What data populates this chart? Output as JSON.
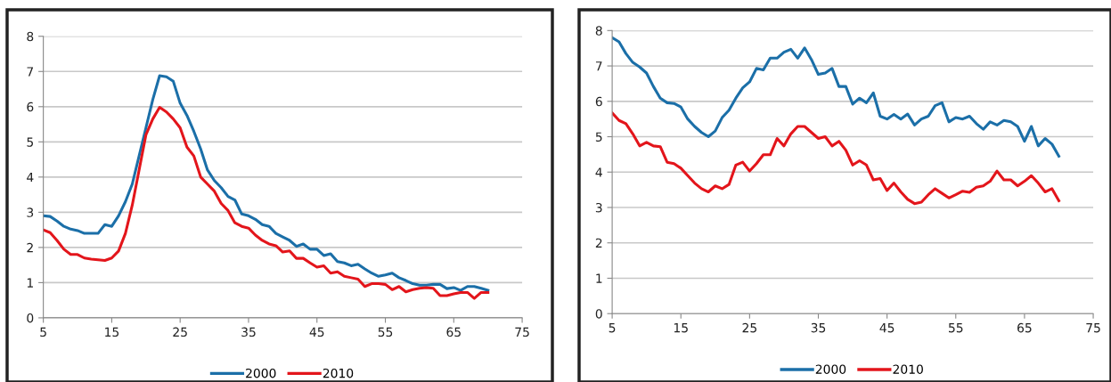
{
  "chart_data": [
    {
      "type": "line",
      "x": [
        5,
        6,
        7,
        8,
        9,
        10,
        11,
        12,
        13,
        14,
        15,
        16,
        17,
        18,
        19,
        20,
        21,
        22,
        23,
        24,
        25,
        26,
        27,
        28,
        29,
        30,
        31,
        32,
        33,
        34,
        35,
        36,
        37,
        38,
        39,
        40,
        41,
        42,
        43,
        44,
        45,
        46,
        47,
        48,
        49,
        50,
        51,
        52,
        53,
        54,
        55,
        56,
        57,
        58,
        59,
        60,
        61,
        62,
        63,
        64,
        65,
        66,
        67,
        68,
        69,
        70
      ],
      "series": [
        {
          "name": "2000",
          "color": "#1b6fa8",
          "values": [
            2.9,
            2.88,
            2.75,
            2.6,
            2.52,
            2.48,
            2.4,
            2.4,
            2.4,
            2.65,
            2.6,
            2.9,
            3.3,
            3.8,
            4.6,
            5.4,
            6.2,
            6.88,
            6.85,
            6.72,
            6.1,
            5.75,
            5.3,
            4.8,
            4.2,
            3.9,
            3.7,
            3.45,
            3.35,
            2.95,
            2.9,
            2.8,
            2.65,
            2.6,
            2.4,
            2.3,
            2.2,
            2.03,
            2.1,
            1.95,
            1.95,
            1.77,
            1.82,
            1.6,
            1.56,
            1.48,
            1.52,
            1.39,
            1.27,
            1.18,
            1.22,
            1.27,
            1.14,
            1.06,
            0.97,
            0.93,
            0.93,
            0.95,
            0.95,
            0.83,
            0.86,
            0.78,
            0.89,
            0.89,
            0.84,
            0.78
          ]
        },
        {
          "name": "2010",
          "color": "#e3151b",
          "values": [
            2.5,
            2.42,
            2.2,
            1.95,
            1.8,
            1.8,
            1.7,
            1.67,
            1.65,
            1.63,
            1.7,
            1.9,
            2.4,
            3.2,
            4.2,
            5.2,
            5.65,
            5.98,
            5.85,
            5.65,
            5.4,
            4.85,
            4.6,
            4.0,
            3.8,
            3.6,
            3.25,
            3.05,
            2.7,
            2.6,
            2.55,
            2.35,
            2.2,
            2.1,
            2.05,
            1.87,
            1.9,
            1.69,
            1.69,
            1.56,
            1.44,
            1.48,
            1.27,
            1.31,
            1.18,
            1.14,
            1.1,
            0.89,
            0.97,
            0.97,
            0.95,
            0.8,
            0.89,
            0.74,
            0.8,
            0.84,
            0.86,
            0.84,
            0.63,
            0.63,
            0.68,
            0.72,
            0.72,
            0.55,
            0.72,
            0.72
          ]
        }
      ],
      "xlim": [
        5,
        75
      ],
      "xticks": [
        5,
        15,
        25,
        35,
        45,
        55,
        65,
        75
      ],
      "ylim": [
        0,
        8
      ],
      "yticks": [
        0,
        1,
        2,
        3,
        4,
        5,
        6,
        7,
        8
      ],
      "grid": "y",
      "legend": "bottom"
    },
    {
      "type": "line",
      "x": [
        5,
        6,
        7,
        8,
        9,
        10,
        11,
        12,
        13,
        14,
        15,
        16,
        17,
        18,
        19,
        20,
        21,
        22,
        23,
        24,
        25,
        26,
        27,
        28,
        29,
        30,
        31,
        32,
        33,
        34,
        35,
        36,
        37,
        38,
        39,
        40,
        41,
        42,
        43,
        44,
        45,
        46,
        47,
        48,
        49,
        50,
        51,
        52,
        53,
        54,
        55,
        56,
        57,
        58,
        59,
        60,
        61,
        62,
        63,
        64,
        65,
        66,
        67,
        68,
        69,
        70
      ],
      "series": [
        {
          "name": "2000",
          "color": "#1b6fa8",
          "values": [
            7.8,
            7.68,
            7.35,
            7.1,
            6.97,
            6.8,
            6.42,
            6.09,
            5.96,
            5.94,
            5.84,
            5.5,
            5.29,
            5.12,
            5.0,
            5.16,
            5.54,
            5.75,
            6.09,
            6.38,
            6.55,
            6.93,
            6.89,
            7.22,
            7.22,
            7.39,
            7.47,
            7.22,
            7.51,
            7.18,
            6.76,
            6.8,
            6.93,
            6.42,
            6.42,
            5.92,
            6.09,
            5.96,
            6.24,
            5.58,
            5.5,
            5.63,
            5.5,
            5.64,
            5.33,
            5.5,
            5.58,
            5.88,
            5.96,
            5.42,
            5.54,
            5.5,
            5.58,
            5.37,
            5.21,
            5.42,
            5.33,
            5.46,
            5.42,
            5.29,
            4.87,
            5.29,
            4.74,
            4.95,
            4.79,
            4.45
          ]
        },
        {
          "name": "2010",
          "color": "#e3151b",
          "values": [
            5.67,
            5.46,
            5.37,
            5.08,
            4.74,
            4.84,
            4.74,
            4.72,
            4.28,
            4.24,
            4.11,
            3.9,
            3.69,
            3.53,
            3.44,
            3.61,
            3.53,
            3.65,
            4.2,
            4.28,
            4.03,
            4.24,
            4.49,
            4.49,
            4.95,
            4.74,
            5.08,
            5.29,
            5.29,
            5.12,
            4.95,
            5.0,
            4.74,
            4.87,
            4.62,
            4.2,
            4.32,
            4.2,
            3.78,
            3.82,
            3.48,
            3.69,
            3.44,
            3.23,
            3.11,
            3.15,
            3.36,
            3.53,
            3.4,
            3.27,
            3.36,
            3.46,
            3.43,
            3.57,
            3.61,
            3.74,
            4.03,
            3.78,
            3.78,
            3.61,
            3.74,
            3.9,
            3.69,
            3.44,
            3.53,
            3.19
          ]
        }
      ],
      "xlim": [
        5,
        75
      ],
      "xticks": [
        5,
        15,
        25,
        35,
        45,
        55,
        65,
        75
      ],
      "ylim": [
        0,
        8
      ],
      "yticks": [
        0,
        1,
        2,
        3,
        4,
        5,
        6,
        7,
        8
      ],
      "grid": "y",
      "legend": "bottom"
    }
  ]
}
